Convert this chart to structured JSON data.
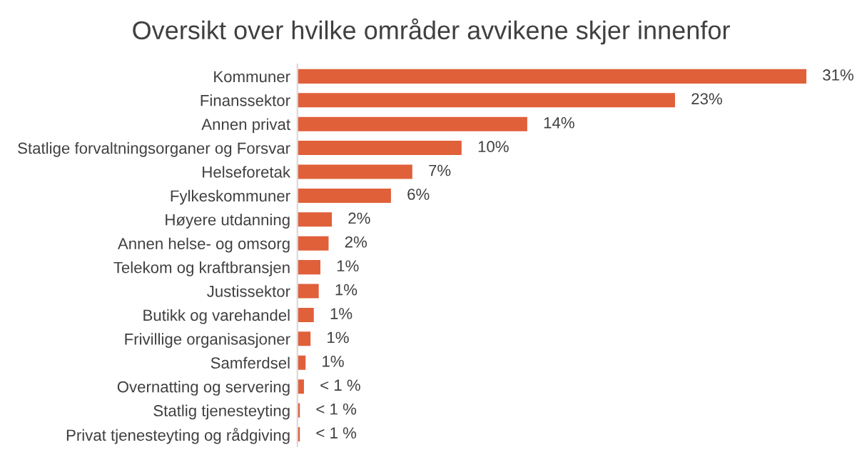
{
  "chart_data": {
    "type": "bar",
    "orientation": "horizontal",
    "title": "Oversikt over hvilke områder avvikene skjer innenfor",
    "categories": [
      "Kommuner",
      "Finanssektor",
      "Annen privat",
      "Statlige forvaltningsorganer og Forsvar",
      "Helseforetak",
      "Fylkeskommuner",
      "Høyere utdanning",
      "Annen helse- og omsorg",
      "Telekom og kraftbransjen",
      "Justissektor",
      "Butikk og varehandel",
      "Frivillige organisasjoner",
      "Samferdsel",
      "Overnatting og servering",
      "Statlig tjenesteyting",
      "Privat tjenesteyting og rådgiving"
    ],
    "values": [
      31,
      23,
      14,
      10,
      7,
      5.7,
      2.1,
      1.9,
      1.4,
      1.3,
      1.0,
      0.8,
      0.5,
      0.4,
      0.15,
      0.15
    ],
    "value_labels": [
      "31%",
      "23%",
      "14%",
      "10%",
      "7%",
      "6%",
      "2%",
      "2%",
      "1%",
      "1%",
      "1%",
      "1%",
      "1%",
      "< 1 %",
      "< 1 %",
      "< 1 %"
    ],
    "color": "#e0603a"
  }
}
